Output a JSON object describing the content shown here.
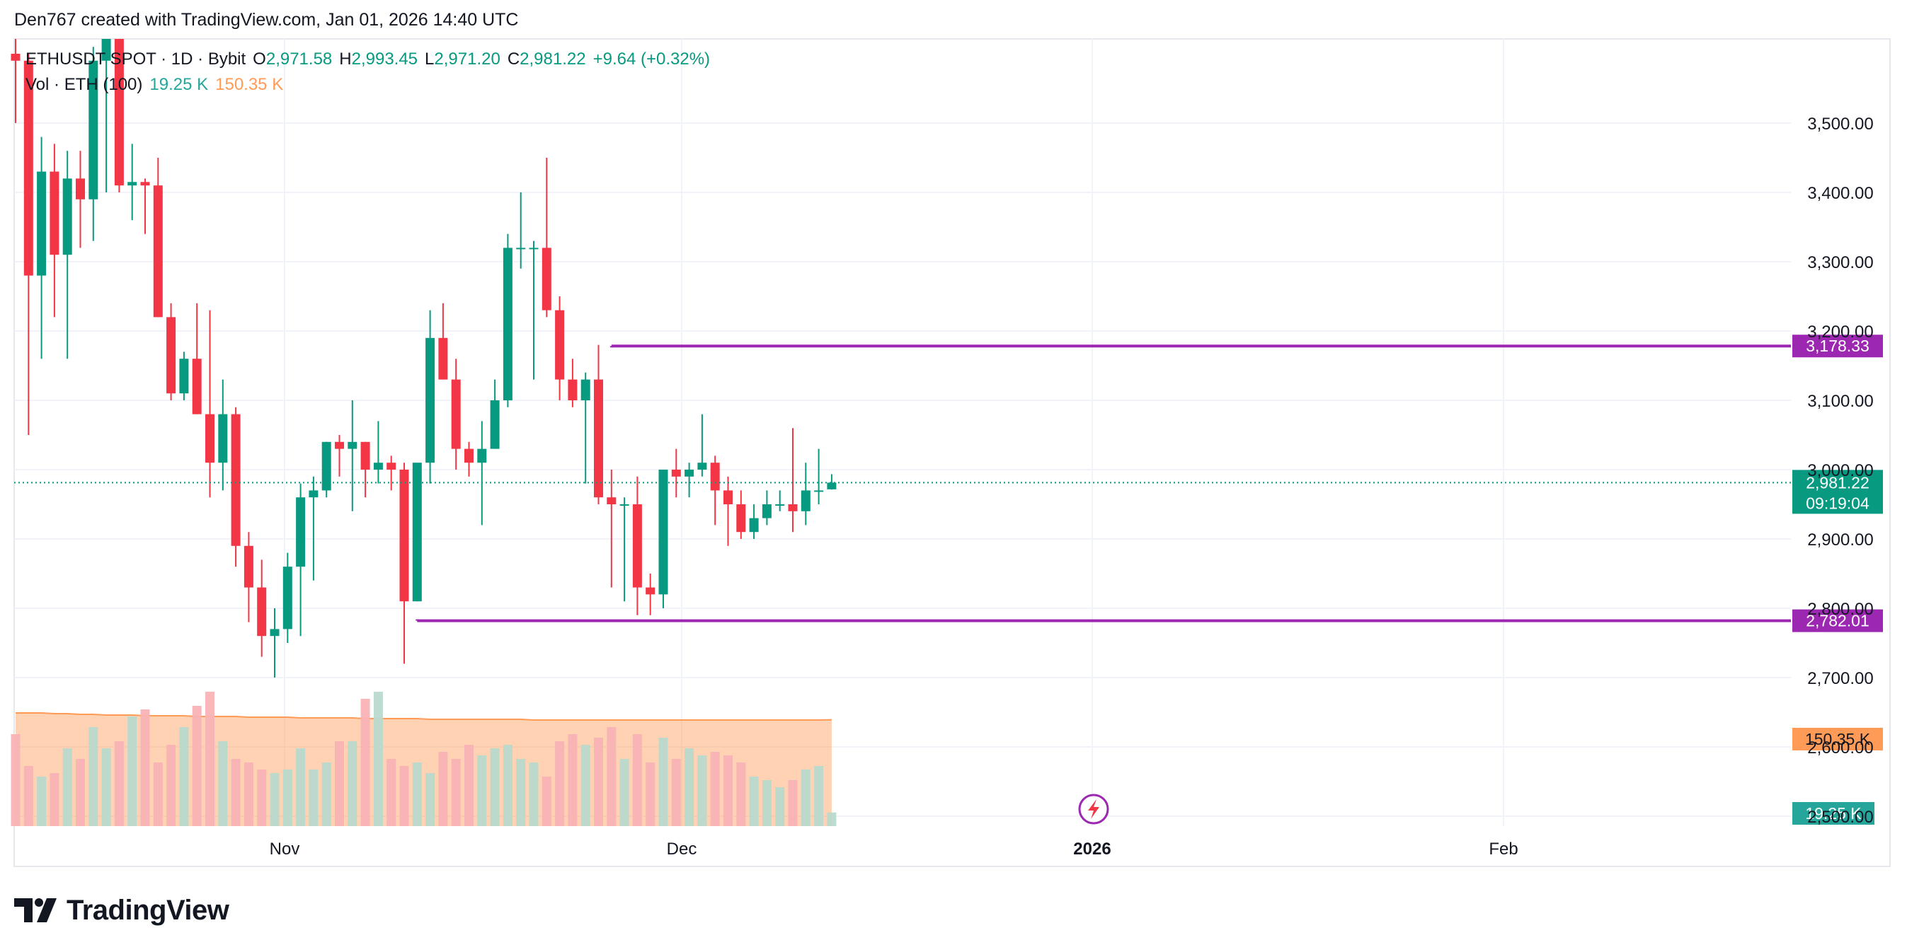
{
  "header": {
    "created_by": "Den767 created with TradingView.com, Jan 01, 2026 14:40 UTC"
  },
  "legend": {
    "symbol": "ETHUSDT SPOT · 1D · Bybit",
    "o_label": "O",
    "o_value": "2,971.58",
    "h_label": "H",
    "h_value": "2,993.45",
    "l_label": "L",
    "l_value": "2,971.20",
    "c_label": "C",
    "c_value": "2,981.22",
    "change": "+9.64 (+0.32%)",
    "vol_label": "Vol · ETH (100)",
    "vol_value": "19.25 K",
    "vol_ma_value": "150.35 K"
  },
  "footer": {
    "brand": "TradingView"
  },
  "colors": {
    "up": "#089981",
    "down": "#f23645",
    "level": "#9c27b0",
    "vol_up": "#b9d9ce",
    "vol_down": "#f9b3b5",
    "vol_ma": "#ff9b57",
    "grid": "#f0f3fa",
    "axis_text": "#131722"
  },
  "chart_data": {
    "type": "candlestick",
    "title": "ETHUSDT SPOT · 1D · Bybit",
    "y_axis": {
      "ticks": [
        2500,
        2600,
        2700,
        2800,
        2900,
        3000,
        3100,
        3200,
        3300,
        3400,
        3500
      ],
      "tick_labels": [
        "2,500.00",
        "2,600.00",
        "2,700.00",
        "2,800.00",
        "2,900.00",
        "3,000.00",
        "3,100.00",
        "3,200.00",
        "3,300.00",
        "3,400.00",
        "3,500.00"
      ]
    },
    "x_axis": {
      "tick_labels": [
        "Nov",
        "Dec",
        "2026",
        "Feb"
      ]
    },
    "candles": [
      [
        3600,
        3650,
        3500,
        3590
      ],
      [
        3590,
        3600,
        3050,
        3280
      ],
      [
        3280,
        3480,
        3160,
        3430
      ],
      [
        3430,
        3470,
        3220,
        3310
      ],
      [
        3310,
        3460,
        3160,
        3420
      ],
      [
        3420,
        3460,
        3320,
        3390
      ],
      [
        3390,
        3610,
        3330,
        3590
      ],
      [
        3590,
        3640,
        3400,
        3640
      ],
      [
        3640,
        3650,
        3400,
        3410
      ],
      [
        3410,
        3470,
        3360,
        3415
      ],
      [
        3415,
        3420,
        3340,
        3410
      ],
      [
        3410,
        3450,
        3220,
        3220
      ],
      [
        3220,
        3240,
        3100,
        3110
      ],
      [
        3110,
        3170,
        3100,
        3160
      ],
      [
        3160,
        3240,
        3080,
        3080
      ],
      [
        3080,
        3230,
        2960,
        3010
      ],
      [
        3010,
        3130,
        2970,
        3080
      ],
      [
        3080,
        3090,
        2860,
        2890
      ],
      [
        2890,
        2910,
        2780,
        2830
      ],
      [
        2830,
        2870,
        2730,
        2760
      ],
      [
        2760,
        2800,
        2700,
        2770
      ],
      [
        2770,
        2880,
        2750,
        2860
      ],
      [
        2860,
        2980,
        2760,
        2960
      ],
      [
        2960,
        2990,
        2840,
        2970
      ],
      [
        2970,
        3040,
        2960,
        3040
      ],
      [
        3040,
        3050,
        2990,
        3030
      ],
      [
        3030,
        3100,
        2940,
        3040
      ],
      [
        3040,
        3040,
        2960,
        3000
      ],
      [
        3000,
        3070,
        2980,
        3010
      ],
      [
        3010,
        3020,
        2970,
        3000
      ],
      [
        3000,
        3010,
        2720,
        2810
      ],
      [
        2810,
        3010,
        2810,
        3010
      ],
      [
        3010,
        3230,
        2980,
        3190
      ],
      [
        3190,
        3240,
        3130,
        3130
      ],
      [
        3130,
        3160,
        3000,
        3030
      ],
      [
        3030,
        3040,
        2990,
        3010
      ],
      [
        3010,
        3070,
        2920,
        3030
      ],
      [
        3030,
        3130,
        3030,
        3100
      ],
      [
        3100,
        3340,
        3090,
        3320
      ],
      [
        3320,
        3400,
        3290,
        3320
      ],
      [
        3320,
        3330,
        3130,
        3320
      ],
      [
        3320,
        3450,
        3220,
        3230
      ],
      [
        3230,
        3250,
        3100,
        3130
      ],
      [
        3130,
        3160,
        3090,
        3100
      ],
      [
        3100,
        3140,
        2980,
        3130
      ],
      [
        3130,
        3180,
        2950,
        2960
      ],
      [
        2960,
        3000,
        2830,
        2950
      ],
      [
        2950,
        2960,
        2810,
        2950
      ],
      [
        2950,
        2990,
        2790,
        2830
      ],
      [
        2830,
        2850,
        2790,
        2820
      ],
      [
        2820,
        3000,
        2800,
        3000
      ],
      [
        3000,
        3030,
        2960,
        2990
      ],
      [
        2990,
        3010,
        2960,
        3000
      ],
      [
        3000,
        3080,
        2990,
        3010
      ],
      [
        3010,
        3020,
        2920,
        2970
      ],
      [
        2970,
        2990,
        2890,
        2950
      ],
      [
        2950,
        2970,
        2900,
        2910
      ],
      [
        2910,
        2950,
        2900,
        2930
      ],
      [
        2930,
        2970,
        2920,
        2950
      ],
      [
        2950,
        2970,
        2940,
        2950
      ],
      [
        2950,
        3060,
        2910,
        2940
      ],
      [
        2940,
        3010,
        2920,
        2970
      ],
      [
        2970,
        3030,
        2950,
        2970
      ],
      [
        2971.58,
        2993.45,
        2971.2,
        2981.22
      ]
    ],
    "volume_k": [
      130,
      85,
      70,
      75,
      110,
      95,
      140,
      110,
      120,
      155,
      165,
      90,
      115,
      140,
      170,
      190,
      120,
      95,
      90,
      80,
      75,
      80,
      110,
      80,
      90,
      120,
      120,
      180,
      190,
      95,
      85,
      90,
      75,
      105,
      95,
      115,
      100,
      110,
      115,
      95,
      90,
      70,
      120,
      130,
      115,
      125,
      140,
      95,
      130,
      90,
      125,
      95,
      110,
      100,
      105,
      100,
      90,
      70,
      65,
      55,
      65,
      80,
      85,
      19.25
    ],
    "volume_ma_k": [
      160,
      160,
      160,
      159,
      159,
      158,
      158,
      157,
      157,
      157,
      156,
      156,
      156,
      156,
      155,
      155,
      155,
      155,
      154,
      154,
      154,
      154,
      153,
      153,
      153,
      153,
      153,
      152,
      152,
      152,
      152,
      152,
      151,
      151,
      151,
      151,
      151,
      151,
      151,
      151,
      150,
      150,
      150,
      150,
      150,
      150,
      150,
      150,
      150,
      150,
      150,
      150,
      150,
      150,
      150,
      150,
      150,
      150,
      150,
      150,
      150,
      150,
      150,
      150.35
    ],
    "levels": [
      {
        "value": 3178.33,
        "label": "3,178.33",
        "start_index": 46
      },
      {
        "value": 2782.01,
        "label": "2,782.01",
        "start_index": 31
      }
    ],
    "last_price": {
      "value": 2981.22,
      "label": "2,981.22",
      "countdown": "09:19:04"
    },
    "volume_ma_label": "150.35 K",
    "volume_label": "19.25 K"
  }
}
